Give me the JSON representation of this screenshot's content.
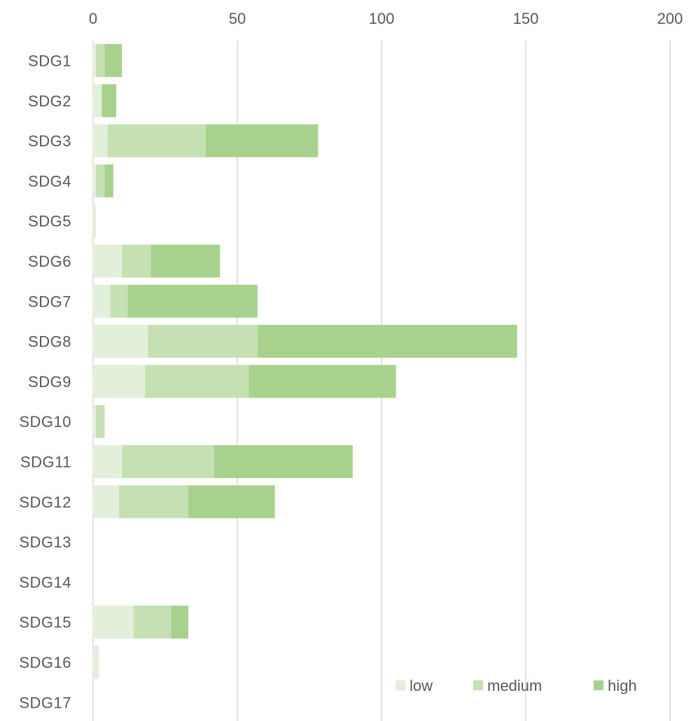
{
  "chart_data": {
    "type": "bar",
    "orientation": "horizontal",
    "stacked": true,
    "categories": [
      "SDG1",
      "SDG2",
      "SDG3",
      "SDG4",
      "SDG5",
      "SDG6",
      "SDG7",
      "SDG8",
      "SDG9",
      "SDG10",
      "SDG11",
      "SDG12",
      "SDG13",
      "SDG14",
      "SDG15",
      "SDG16",
      "SDG17"
    ],
    "series": [
      {
        "name": "low",
        "color": "#e2efda",
        "values": [
          1,
          3,
          5,
          1,
          1,
          10,
          6,
          19,
          18,
          1,
          10,
          9,
          0,
          0,
          14,
          2,
          0
        ]
      },
      {
        "name": "medium",
        "color": "#c6e0b4",
        "values": [
          3,
          0,
          34,
          3,
          0,
          10,
          6,
          38,
          36,
          3,
          32,
          24,
          0,
          0,
          13,
          0,
          0
        ]
      },
      {
        "name": "high",
        "color": "#a9d18e",
        "values": [
          6,
          5,
          39,
          3,
          0,
          24,
          45,
          90,
          51,
          0,
          48,
          30,
          0,
          0,
          6,
          0,
          0
        ]
      }
    ],
    "xlim": [
      0,
      200
    ],
    "x_ticks": [
      0,
      50,
      100,
      150,
      200
    ],
    "x_tick_labels": [
      "0",
      "50",
      "100",
      "150",
      "200"
    ],
    "xaxis_position": "top",
    "title": "",
    "xlabel": "",
    "ylabel": "",
    "grid": "vertical",
    "legend_position": "bottom-right"
  }
}
